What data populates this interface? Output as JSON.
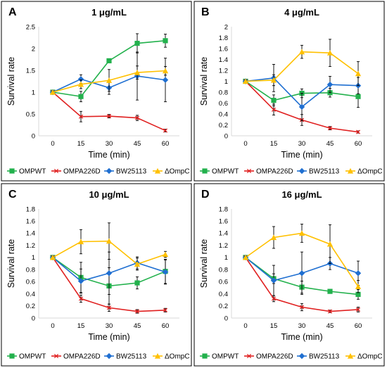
{
  "chart_data": [
    {
      "type": "line",
      "panel": "A",
      "title": "1 μg/mL",
      "xlabel": "Time (min)",
      "ylabel": "Survival rate",
      "x": [
        0,
        15,
        30,
        45,
        60
      ],
      "ylim": [
        0,
        2.5
      ],
      "yticks": [
        0,
        0.5,
        1,
        1.5,
        2,
        2.5
      ],
      "ytick_labels": [
        "0",
        "0.5",
        "1",
        "1.5",
        "2",
        "2.5"
      ],
      "series": [
        {
          "name": "OMPWT",
          "color": "#22b14c",
          "marker": "square",
          "values": [
            1,
            0.9,
            1.72,
            2.12,
            2.18
          ],
          "errors": [
            0.02,
            0.12,
            0.03,
            0.22,
            0.15
          ]
        },
        {
          "name": "OMPA226D",
          "color": "#e02020",
          "marker": "x",
          "values": [
            1,
            0.44,
            0.45,
            0.41,
            0.12
          ],
          "errors": [
            0.02,
            0.12,
            0.04,
            0.06,
            0.03
          ]
        },
        {
          "name": "BW25113",
          "color": "#1f6fd1",
          "marker": "diamond",
          "values": [
            1,
            1.3,
            1.1,
            1.37,
            1.28
          ],
          "errors": [
            0.02,
            0.1,
            0.15,
            0.55,
            0.5
          ]
        },
        {
          "name": "ΔOmpC",
          "color": "#ffc000",
          "marker": "triangle",
          "values": [
            1,
            1.18,
            1.27,
            1.45,
            1.49
          ],
          "errors": [
            0.02,
            0.1,
            0.25,
            0.15,
            0.1
          ]
        }
      ]
    },
    {
      "type": "line",
      "panel": "B",
      "title": "4 μg/mL",
      "xlabel": "Time (min)",
      "ylabel": "Survival rate",
      "x": [
        0,
        15,
        30,
        45,
        60
      ],
      "ylim": [
        0,
        2
      ],
      "yticks": [
        0,
        0.2,
        0.4,
        0.6,
        0.8,
        1,
        1.2,
        1.4,
        1.6,
        1.8,
        2
      ],
      "ytick_labels": [
        "0",
        "0.2",
        "0.4",
        "0.6",
        "0.8",
        "1",
        "1.2",
        "1.4",
        "1.6",
        "1.8",
        "2"
      ],
      "series": [
        {
          "name": "OMPWT",
          "color": "#22b14c",
          "marker": "square",
          "values": [
            1,
            0.65,
            0.78,
            0.79,
            0.72
          ],
          "errors": [
            0.02,
            0.1,
            0.08,
            0.08,
            0.2
          ]
        },
        {
          "name": "OMPA226D",
          "color": "#e02020",
          "marker": "x",
          "values": [
            1,
            0.48,
            0.29,
            0.14,
            0.07
          ],
          "errors": [
            0.02,
            0.1,
            0.1,
            0.03,
            0.02
          ]
        },
        {
          "name": "BW25113",
          "color": "#1f6fd1",
          "marker": "diamond",
          "values": [
            1,
            1.06,
            0.53,
            0.94,
            0.92
          ],
          "errors": [
            0.02,
            0.25,
            0.25,
            0.15,
            0.15
          ]
        },
        {
          "name": "ΔOmpC",
          "color": "#ffc000",
          "marker": "triangle",
          "values": [
            1,
            1.02,
            1.54,
            1.52,
            1.14
          ],
          "errors": [
            0.02,
            0.1,
            0.12,
            0.25,
            0.22
          ]
        }
      ]
    },
    {
      "type": "line",
      "panel": "C",
      "title": "10 μg/mL",
      "xlabel": "Time (min)",
      "ylabel": "Survival rate",
      "x": [
        0,
        15,
        30,
        45,
        60
      ],
      "ylim": [
        0,
        1.8
      ],
      "yticks": [
        0,
        0.2,
        0.4,
        0.6,
        0.8,
        1,
        1.2,
        1.4,
        1.6,
        1.8
      ],
      "ytick_labels": [
        "0",
        "0.2",
        "0.4",
        "0.6",
        "0.8",
        "1",
        "1.2",
        "1.4",
        "1.6",
        "1.8"
      ],
      "series": [
        {
          "name": "OMPWT",
          "color": "#22b14c",
          "marker": "square",
          "values": [
            1,
            0.67,
            0.53,
            0.58,
            0.77
          ],
          "errors": [
            0.02,
            0.25,
            0.3,
            0.1,
            0.2
          ]
        },
        {
          "name": "OMPA226D",
          "color": "#e02020",
          "marker": "x",
          "values": [
            1,
            0.32,
            0.17,
            0.11,
            0.13
          ],
          "errors": [
            0.02,
            0.06,
            0.06,
            0.03,
            0.03
          ]
        },
        {
          "name": "BW25113",
          "color": "#1f6fd1",
          "marker": "diamond",
          "values": [
            1,
            0.61,
            0.74,
            0.91,
            0.76
          ],
          "errors": [
            0.02,
            0.2,
            0.35,
            0.1,
            0.2
          ]
        },
        {
          "name": "ΔOmpC",
          "color": "#ffc000",
          "marker": "triangle",
          "values": [
            1,
            1.26,
            1.27,
            0.89,
            1.05
          ],
          "errors": [
            0.02,
            0.2,
            0.3,
            0.1,
            0.05
          ]
        }
      ]
    },
    {
      "type": "line",
      "panel": "D",
      "title": "16 μg/mL",
      "xlabel": "Time (min)",
      "ylabel": "Survival rate",
      "x": [
        0,
        15,
        30,
        45,
        60
      ],
      "ylim": [
        0,
        1.8
      ],
      "yticks": [
        0,
        0.2,
        0.4,
        0.6,
        0.8,
        1,
        1.2,
        1.4,
        1.6,
        1.8
      ],
      "ytick_labels": [
        "0",
        "0.2",
        "0.4",
        "0.6",
        "0.8",
        "1",
        "1.2",
        "1.4",
        "1.6",
        "1.8"
      ],
      "series": [
        {
          "name": "OMPWT",
          "color": "#22b14c",
          "marker": "square",
          "values": [
            1,
            0.65,
            0.51,
            0.44,
            0.39
          ],
          "errors": [
            0.02,
            0.08,
            0.1,
            0.03,
            0.08
          ]
        },
        {
          "name": "OMPA226D",
          "color": "#e02020",
          "marker": "x",
          "values": [
            1,
            0.32,
            0.18,
            0.11,
            0.14
          ],
          "errors": [
            0.02,
            0.05,
            0.06,
            0.02,
            0.04
          ]
        },
        {
          "name": "BW25113",
          "color": "#1f6fd1",
          "marker": "diamond",
          "values": [
            1,
            0.62,
            0.74,
            0.9,
            0.74
          ],
          "errors": [
            0.02,
            0.25,
            0.35,
            0.1,
            0.2
          ]
        },
        {
          "name": "ΔOmpC",
          "color": "#ffc000",
          "marker": "triangle",
          "values": [
            1,
            1.33,
            1.4,
            1.22,
            0.52
          ],
          "errors": [
            0.02,
            0.18,
            0.15,
            0.32,
            0.1
          ]
        }
      ]
    }
  ]
}
